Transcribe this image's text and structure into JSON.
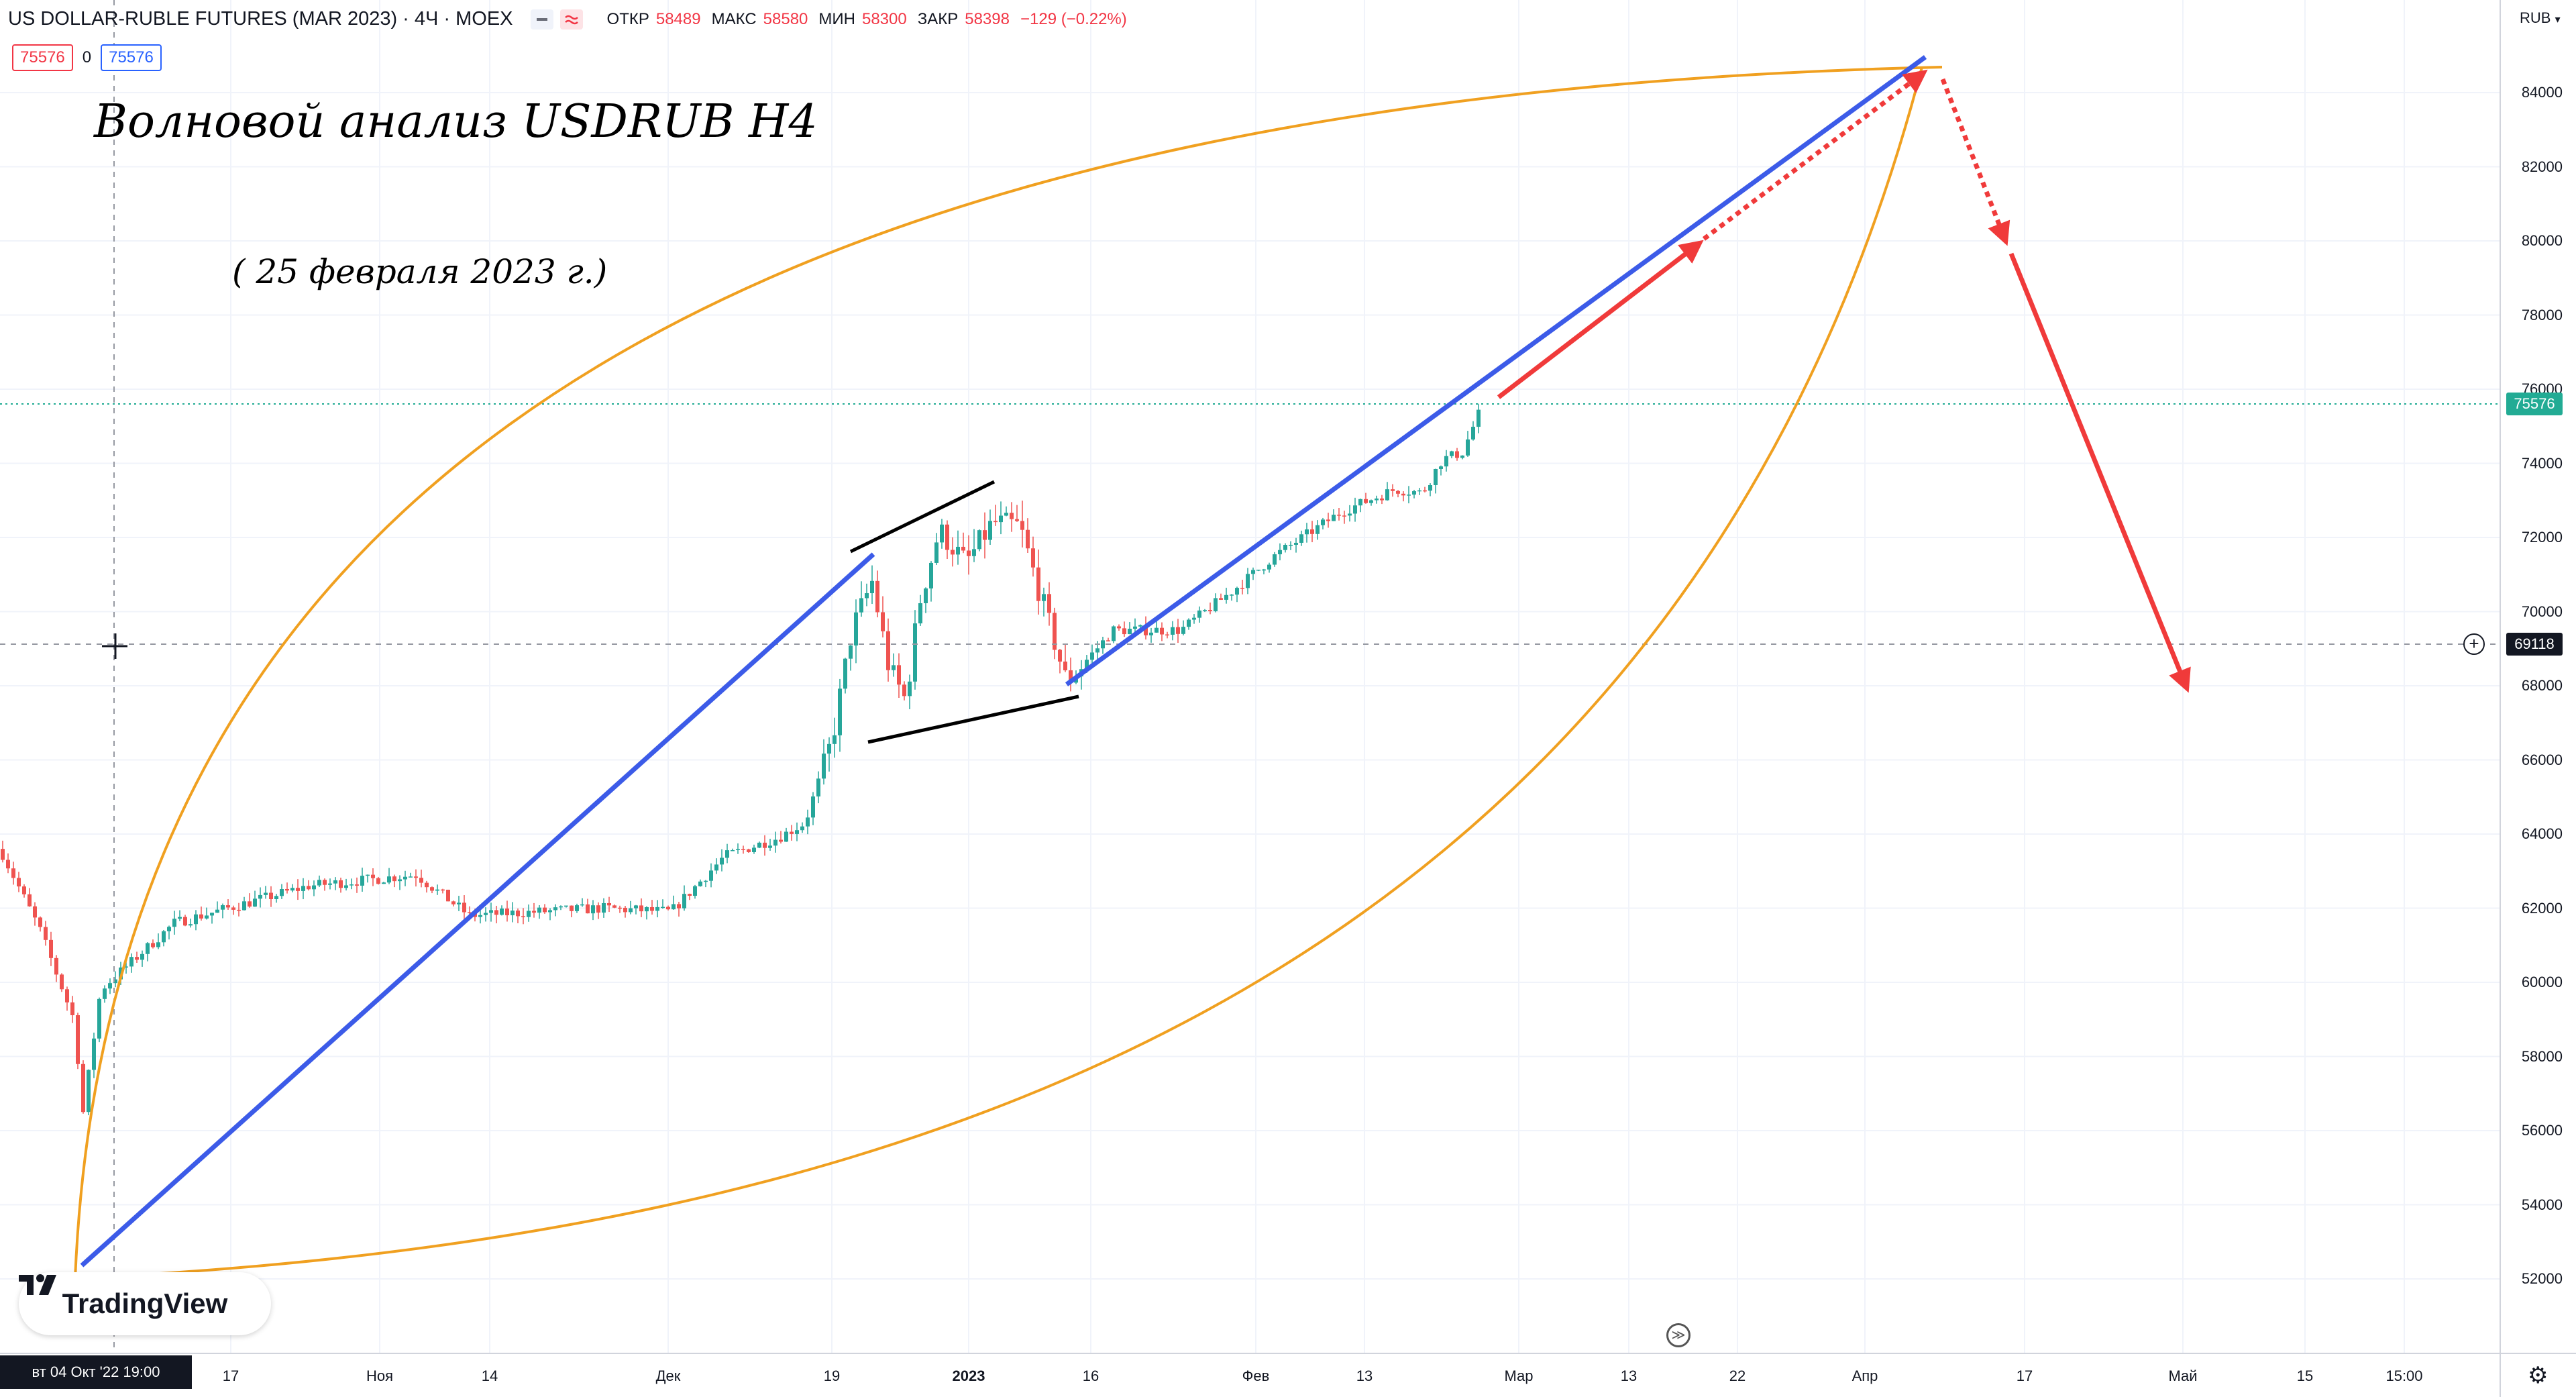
{
  "legend": {
    "symbol": "US DOLLAR-RUBLE FUTURES (MAR 2023) · 4Ч · MOEX",
    "open_label": "ОТКР",
    "open": "58489",
    "high_label": "МАКС",
    "high": "58580",
    "low_label": "МИН",
    "low": "58300",
    "close_label": "ЗАКР",
    "close": "58398",
    "change": "−129 (−0.22%)",
    "price_left": "75576",
    "spread": "0",
    "price_right": "75576"
  },
  "annotations": {
    "title": "Волновой анализ USDRUB H4",
    "date": "( 25 февраля 2023 г.)"
  },
  "price_axis": {
    "currency": "RUB",
    "ticks": [
      "84000",
      "82000",
      "80000",
      "78000",
      "76000",
      "74000",
      "72000",
      "70000",
      "68000",
      "66000",
      "64000",
      "62000",
      "60000",
      "58000",
      "56000",
      "54000",
      "52000"
    ],
    "last_price": "75576",
    "crosshair_price": "69118"
  },
  "time_axis": {
    "ticks": [
      "17",
      "Ноя",
      "14",
      "Дек",
      "19",
      "2023",
      "16",
      "Фев",
      "13",
      "Мар",
      "13",
      "22",
      "Апр",
      "17",
      "Май",
      "15",
      "15:00"
    ],
    "crosshair_date": "вт 04 Окт '22   19:00"
  },
  "branding": {
    "logo_text": "TradingView"
  },
  "colors": {
    "up": "#26a69a",
    "down": "#ef5350",
    "trend": "#3c5be8",
    "forecast": "#f03a3a",
    "curve": "#f0a020",
    "last_price": "#22ab94",
    "crosshair_badge": "#131722"
  },
  "chart_data": {
    "type": "candlestick",
    "ylim": [
      51000,
      86400
    ],
    "key_points": [
      {
        "date": "04 Окт 2022",
        "price": 52600
      },
      {
        "date": "Окт 2022",
        "price": 63600
      },
      {
        "date": "Ноя 2022",
        "price": 62200
      },
      {
        "date": "Дек 2022",
        "price": 71200
      },
      {
        "date": "Янв 2023",
        "price": 72800
      },
      {
        "date": "Янв 2023",
        "price": 68100
      },
      {
        "date": "24 Фев 2023",
        "price": 75576
      }
    ],
    "forecast": [
      {
        "date": "Мар 2023",
        "price": 80000
      },
      {
        "date": "Апр 2023",
        "price": 84700
      },
      {
        "date": "Апр 2023",
        "price": 79800
      },
      {
        "date": "Май 2023",
        "price": 68000
      }
    ]
  }
}
